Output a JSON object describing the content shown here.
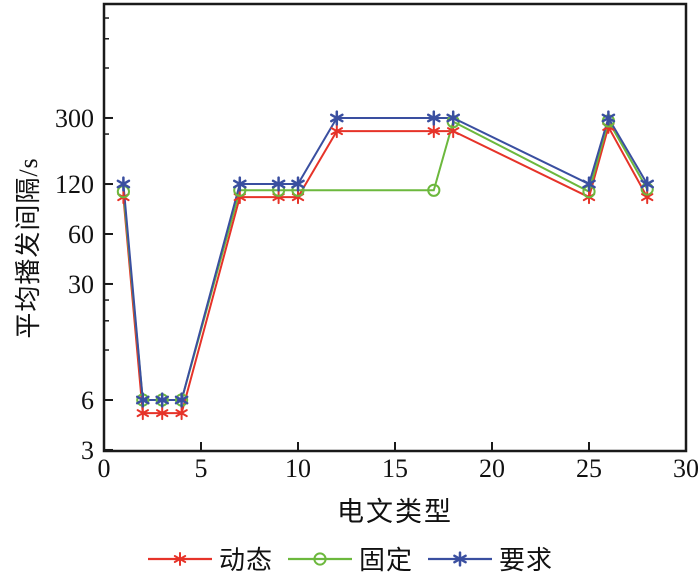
{
  "chart_data": {
    "type": "line",
    "title": "",
    "xlabel": "电文类型",
    "ylabel": "平均播发间隔/s",
    "x_scale": "linear",
    "y_scale": "log",
    "xlim": [
      0,
      30
    ],
    "ylim": [
      3,
      1450
    ],
    "x_ticks": [
      0,
      5,
      10,
      15,
      20,
      25,
      30
    ],
    "y_ticks": [
      3,
      6,
      30,
      60,
      120,
      300
    ],
    "y_minor_ticks": [
      12,
      18,
      24,
      240,
      600,
      900,
      1200
    ],
    "grid": false,
    "legend_position": "bottom",
    "axis_color": "#1a1a1a",
    "series": [
      {
        "name": "动态",
        "color": "#e63329",
        "marker": "asterisk6",
        "points": [
          [
            1,
            100
          ],
          [
            2,
            5
          ],
          [
            3,
            5
          ],
          [
            4,
            5
          ],
          [
            7,
            100
          ],
          [
            9,
            100
          ],
          [
            10,
            100
          ],
          [
            12,
            250
          ],
          [
            17,
            250
          ],
          [
            18,
            250
          ],
          [
            25,
            100
          ],
          [
            26,
            265
          ],
          [
            28,
            100
          ]
        ]
      },
      {
        "name": "固定",
        "color": "#6cb83d",
        "marker": "circle",
        "points": [
          [
            1,
            108
          ],
          [
            2,
            6
          ],
          [
            3,
            6
          ],
          [
            4,
            6
          ],
          [
            7,
            110
          ],
          [
            9,
            110
          ],
          [
            10,
            110
          ],
          [
            17,
            110
          ],
          [
            18,
            285
          ],
          [
            25,
            108
          ],
          [
            26,
            288
          ],
          [
            28,
            112
          ]
        ]
      },
      {
        "name": "要求",
        "color": "#3a4fa0",
        "marker": "asterisk6-bold",
        "points": [
          [
            1,
            120
          ],
          [
            2,
            6
          ],
          [
            3,
            6
          ],
          [
            4,
            6
          ],
          [
            7,
            120
          ],
          [
            9,
            120
          ],
          [
            10,
            120
          ],
          [
            12,
            300
          ],
          [
            17,
            300
          ],
          [
            18,
            300
          ],
          [
            25,
            120
          ],
          [
            26,
            300
          ],
          [
            28,
            120
          ]
        ]
      }
    ]
  }
}
